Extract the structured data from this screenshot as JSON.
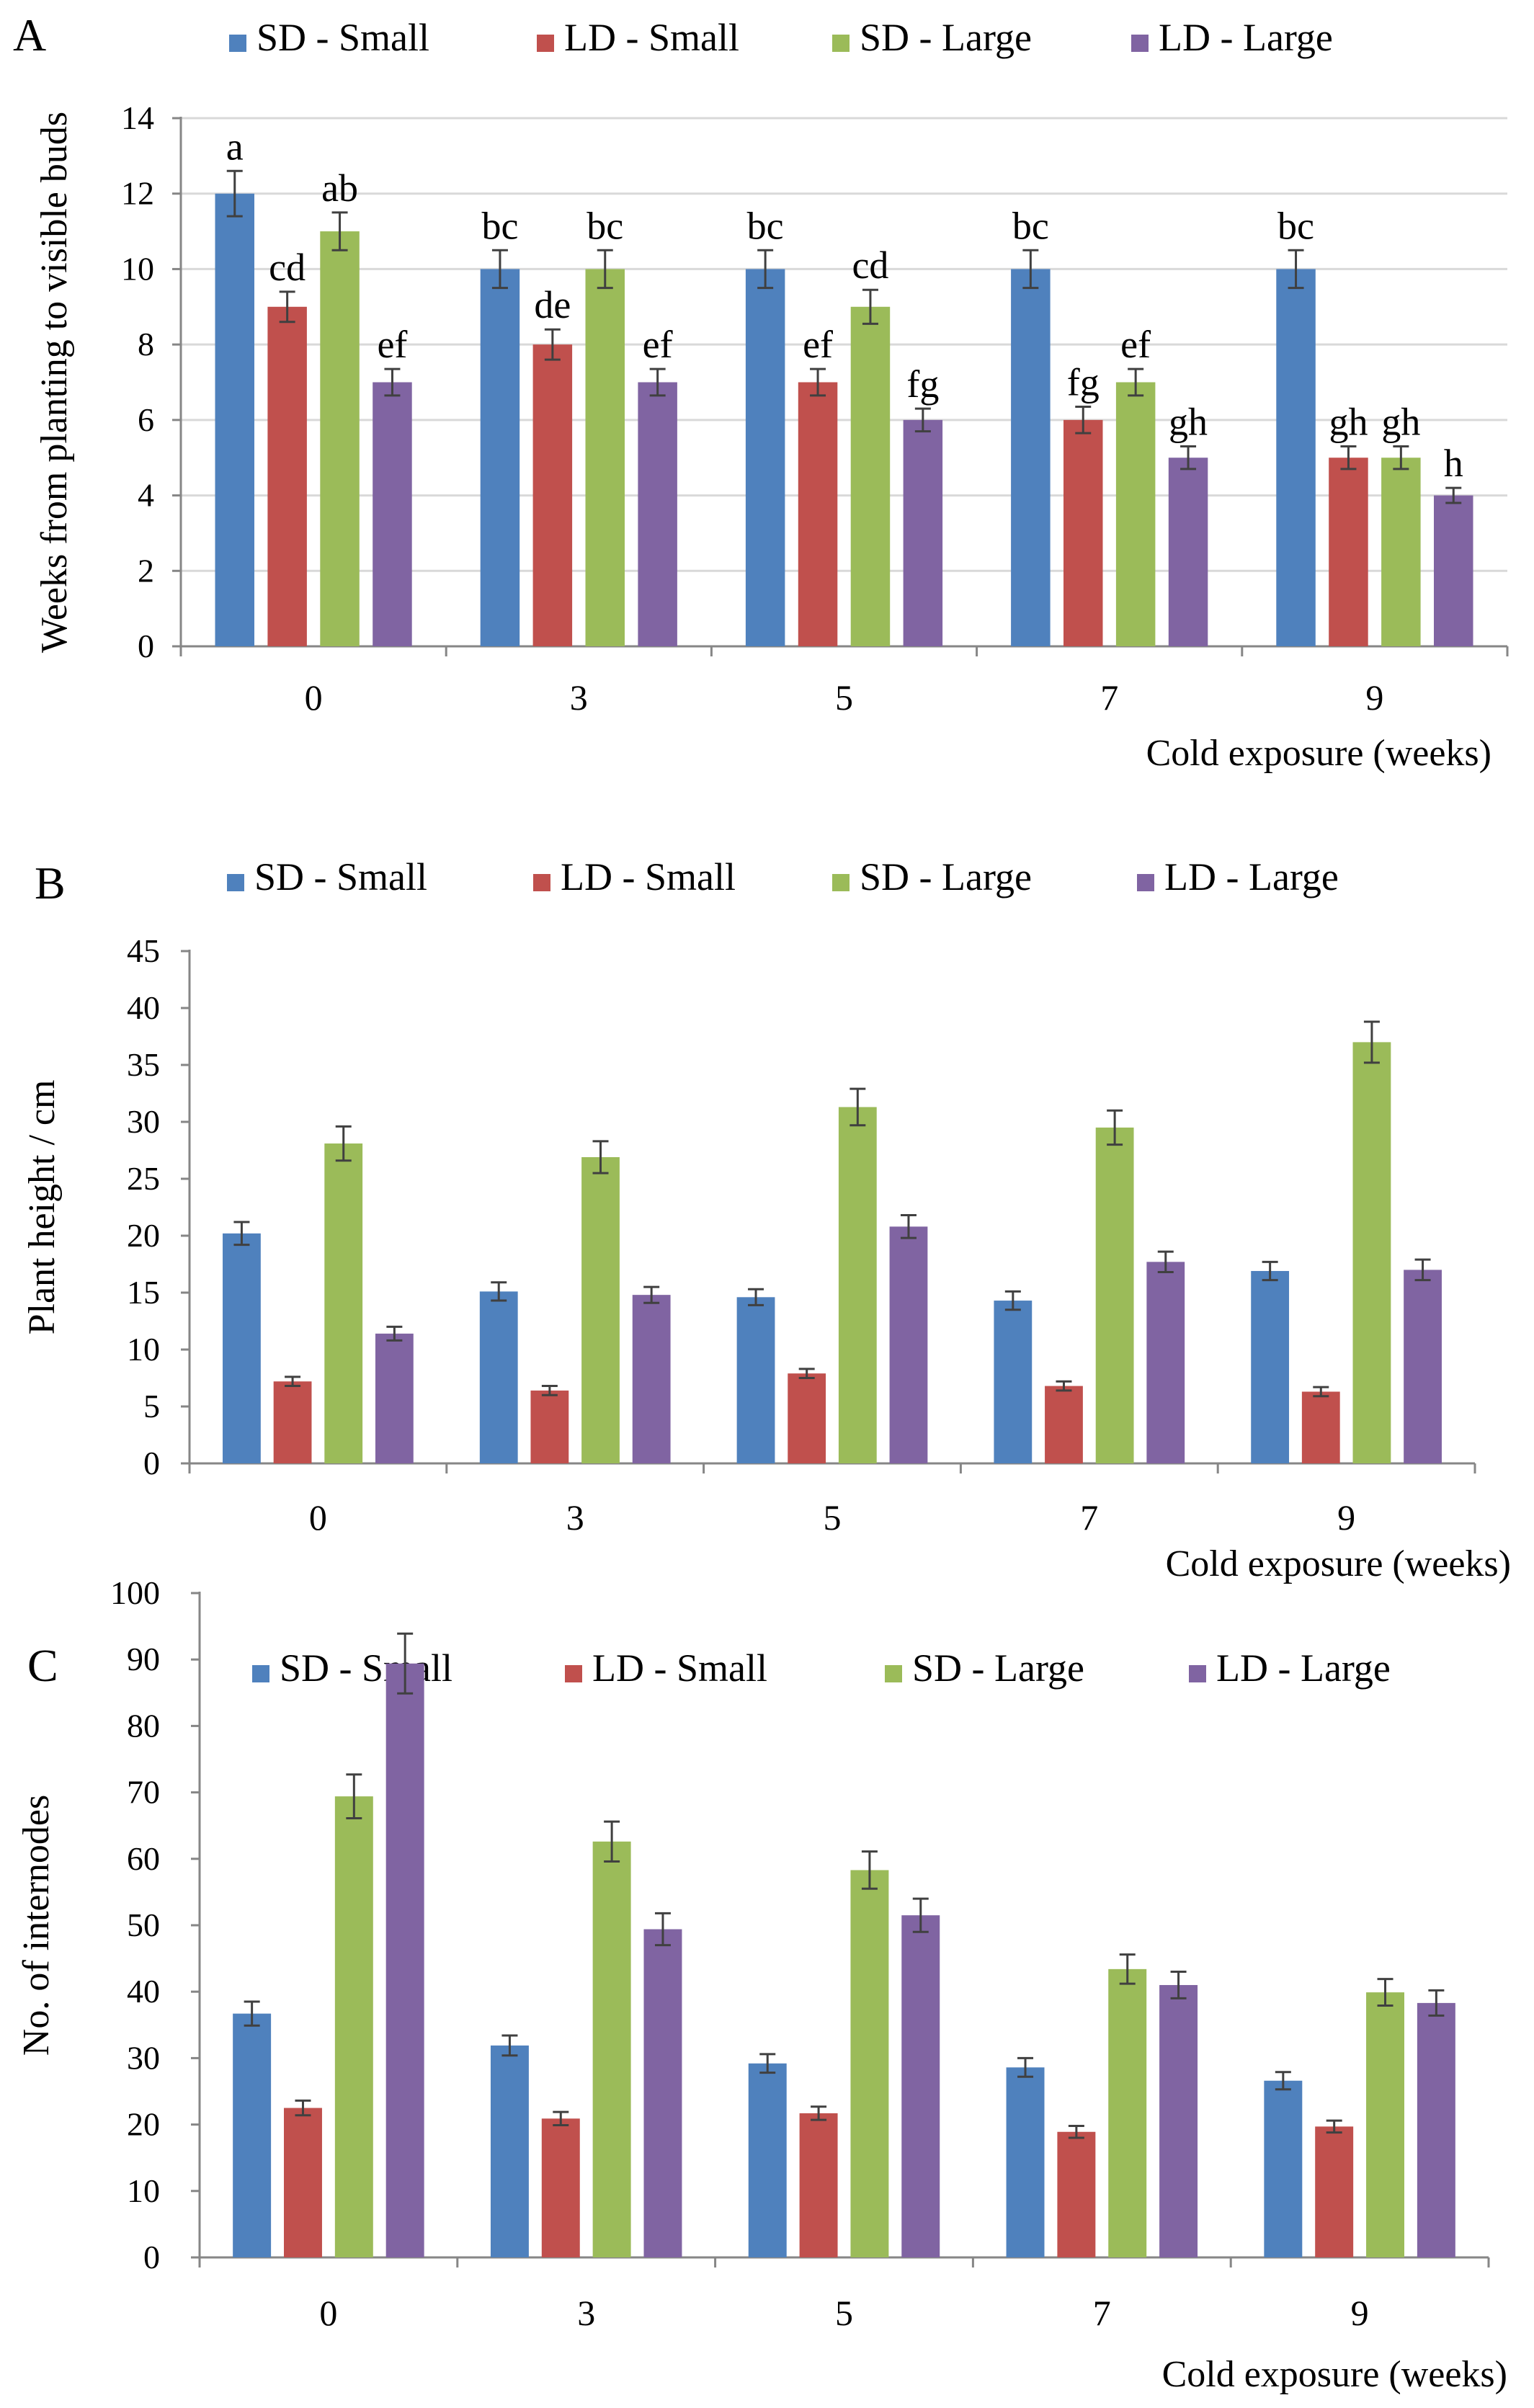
{
  "colors": {
    "SD - Small": "#4F81BD",
    "LD - Small": "#C0504D",
    "SD - Large": "#9BBB59",
    "LD - Large": "#8064A2",
    "grid": "#D9D9D9",
    "axis": "#868686",
    "error_bar": "#404040"
  },
  "chart_data": [
    {
      "panel": "A",
      "type": "bar",
      "categories": [
        "0",
        "3",
        "5",
        "7",
        "9"
      ],
      "series": [
        {
          "name": "SD - Small",
          "values": [
            12,
            10,
            10,
            10,
            10
          ],
          "errors": [
            0.6,
            0.5,
            0.5,
            0.5,
            0.5
          ],
          "labels": [
            "a",
            "bc",
            "bc",
            "bc",
            "bc"
          ]
        },
        {
          "name": "LD - Small",
          "values": [
            9,
            8,
            7,
            6,
            5
          ],
          "errors": [
            0.4,
            0.4,
            0.35,
            0.35,
            0.3
          ],
          "labels": [
            "cd",
            "de",
            "ef",
            "fg",
            "gh"
          ]
        },
        {
          "name": "SD - Large",
          "values": [
            11,
            10,
            9,
            7,
            5
          ],
          "errors": [
            0.5,
            0.5,
            0.45,
            0.35,
            0.3
          ],
          "labels": [
            "ab",
            "bc",
            "cd",
            "ef",
            "gh"
          ]
        },
        {
          "name": "LD - Large",
          "values": [
            7,
            7,
            6,
            5,
            4
          ],
          "errors": [
            0.35,
            0.35,
            0.3,
            0.3,
            0.2
          ],
          "labels": [
            "ef",
            "ef",
            "fg",
            "gh",
            "h"
          ]
        }
      ],
      "xlabel": "Cold exposure (weeks)",
      "ylabel": "Weeks from planting to visible buds",
      "ylim": [
        0,
        14
      ],
      "yticks": [
        0,
        2,
        4,
        6,
        8,
        10,
        12,
        14
      ],
      "grid": true,
      "legend": "top"
    },
    {
      "panel": "B",
      "type": "bar",
      "categories": [
        "0",
        "3",
        "5",
        "7",
        "9"
      ],
      "series": [
        {
          "name": "SD - Small",
          "values": [
            20.2,
            15.1,
            14.6,
            14.3,
            16.9
          ],
          "errors": [
            1.0,
            0.8,
            0.7,
            0.8,
            0.8
          ],
          "labels": []
        },
        {
          "name": "LD - Small",
          "values": [
            7.2,
            6.4,
            7.9,
            6.8,
            6.3
          ],
          "errors": [
            0.4,
            0.4,
            0.4,
            0.4,
            0.4
          ],
          "labels": []
        },
        {
          "name": "SD - Large",
          "values": [
            28.1,
            26.9,
            31.3,
            29.5,
            37.0
          ],
          "errors": [
            1.5,
            1.4,
            1.6,
            1.5,
            1.8
          ],
          "labels": []
        },
        {
          "name": "LD - Large",
          "values": [
            11.4,
            14.8,
            20.8,
            17.7,
            17.0
          ],
          "errors": [
            0.6,
            0.7,
            1.0,
            0.9,
            0.9
          ],
          "labels": []
        }
      ],
      "xlabel": "Cold exposure (weeks)",
      "ylabel": "Plant height / cm",
      "ylim": [
        0,
        45
      ],
      "yticks": [
        0,
        5,
        10,
        15,
        20,
        25,
        30,
        35,
        40,
        45
      ],
      "grid": false,
      "legend": "top"
    },
    {
      "panel": "C",
      "type": "bar",
      "categories": [
        "0",
        "3",
        "5",
        "7",
        "9"
      ],
      "series": [
        {
          "name": "SD - Small",
          "values": [
            36.7,
            31.9,
            29.2,
            28.6,
            26.6
          ],
          "errors": [
            1.8,
            1.5,
            1.4,
            1.4,
            1.3
          ],
          "labels": []
        },
        {
          "name": "LD - Small",
          "values": [
            22.5,
            20.9,
            21.7,
            18.9,
            19.7
          ],
          "errors": [
            1.1,
            1.0,
            1.0,
            0.9,
            0.9
          ],
          "labels": []
        },
        {
          "name": "SD - Large",
          "values": [
            69.4,
            62.6,
            58.3,
            43.4,
            39.9
          ],
          "errors": [
            3.3,
            3.0,
            2.8,
            2.2,
            2.0
          ],
          "labels": []
        },
        {
          "name": "LD - Large",
          "values": [
            89.4,
            49.4,
            51.5,
            41.0,
            38.3
          ],
          "errors": [
            4.5,
            2.4,
            2.5,
            2.0,
            1.9
          ],
          "labels": []
        }
      ],
      "xlabel": "Cold exposure (weeks)",
      "ylabel": "No. of internodes",
      "ylim": [
        0,
        100
      ],
      "yticks": [
        0,
        10,
        20,
        30,
        40,
        50,
        60,
        70,
        80,
        90,
        100
      ],
      "grid": false,
      "legend": "top"
    }
  ]
}
